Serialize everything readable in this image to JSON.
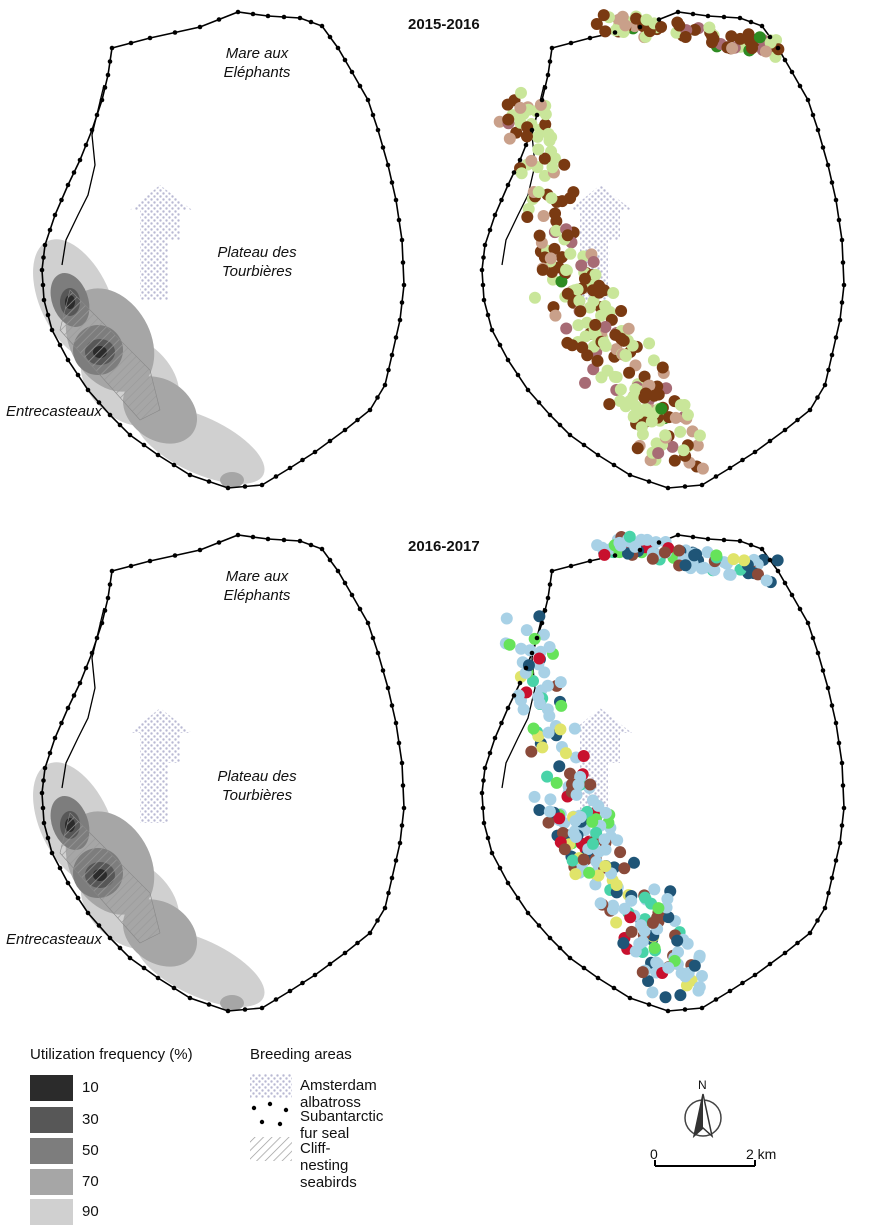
{
  "panels": [
    {
      "period": "2015-2016"
    },
    {
      "period": "2016-2017"
    }
  ],
  "place_labels": {
    "north": "Mare aux\nEléphants",
    "plateau": "Plateau des\nTourbières",
    "west": "Entrecasteaux"
  },
  "utilization_legend": {
    "title": "Utilization frequency (%)",
    "items": [
      {
        "label": "10",
        "color": "#2b2b2b"
      },
      {
        "label": "30",
        "color": "#575757"
      },
      {
        "label": "50",
        "color": "#7d7d7d"
      },
      {
        "label": "70",
        "color": "#a6a6a6"
      },
      {
        "label": "90",
        "color": "#d0d0d0"
      }
    ]
  },
  "breeding_legend": {
    "title": "Breeding areas",
    "items": [
      {
        "label": "Amsterdam albatross",
        "icon": "dot-pattern-icon"
      },
      {
        "label": "Subantarctic fur seal",
        "icon": "black-dots-icon"
      },
      {
        "label": "Cliff-nesting seabirds",
        "icon": "hatch-icon"
      }
    ]
  },
  "north_arrow": {
    "label": "N"
  },
  "scale_bar": {
    "start": "0",
    "end": "2 km"
  },
  "colors": {
    "coast": "#000000",
    "p1_dots": [
      "#7a3a12",
      "#c9a08a",
      "#a76b75",
      "#c9e69a",
      "#2e8b22"
    ],
    "p2_dots": [
      "#8a4a3a",
      "#1f5577",
      "#a8d1e6",
      "#49d3a8",
      "#66e35a",
      "#e0e46a",
      "#c8102e"
    ]
  }
}
